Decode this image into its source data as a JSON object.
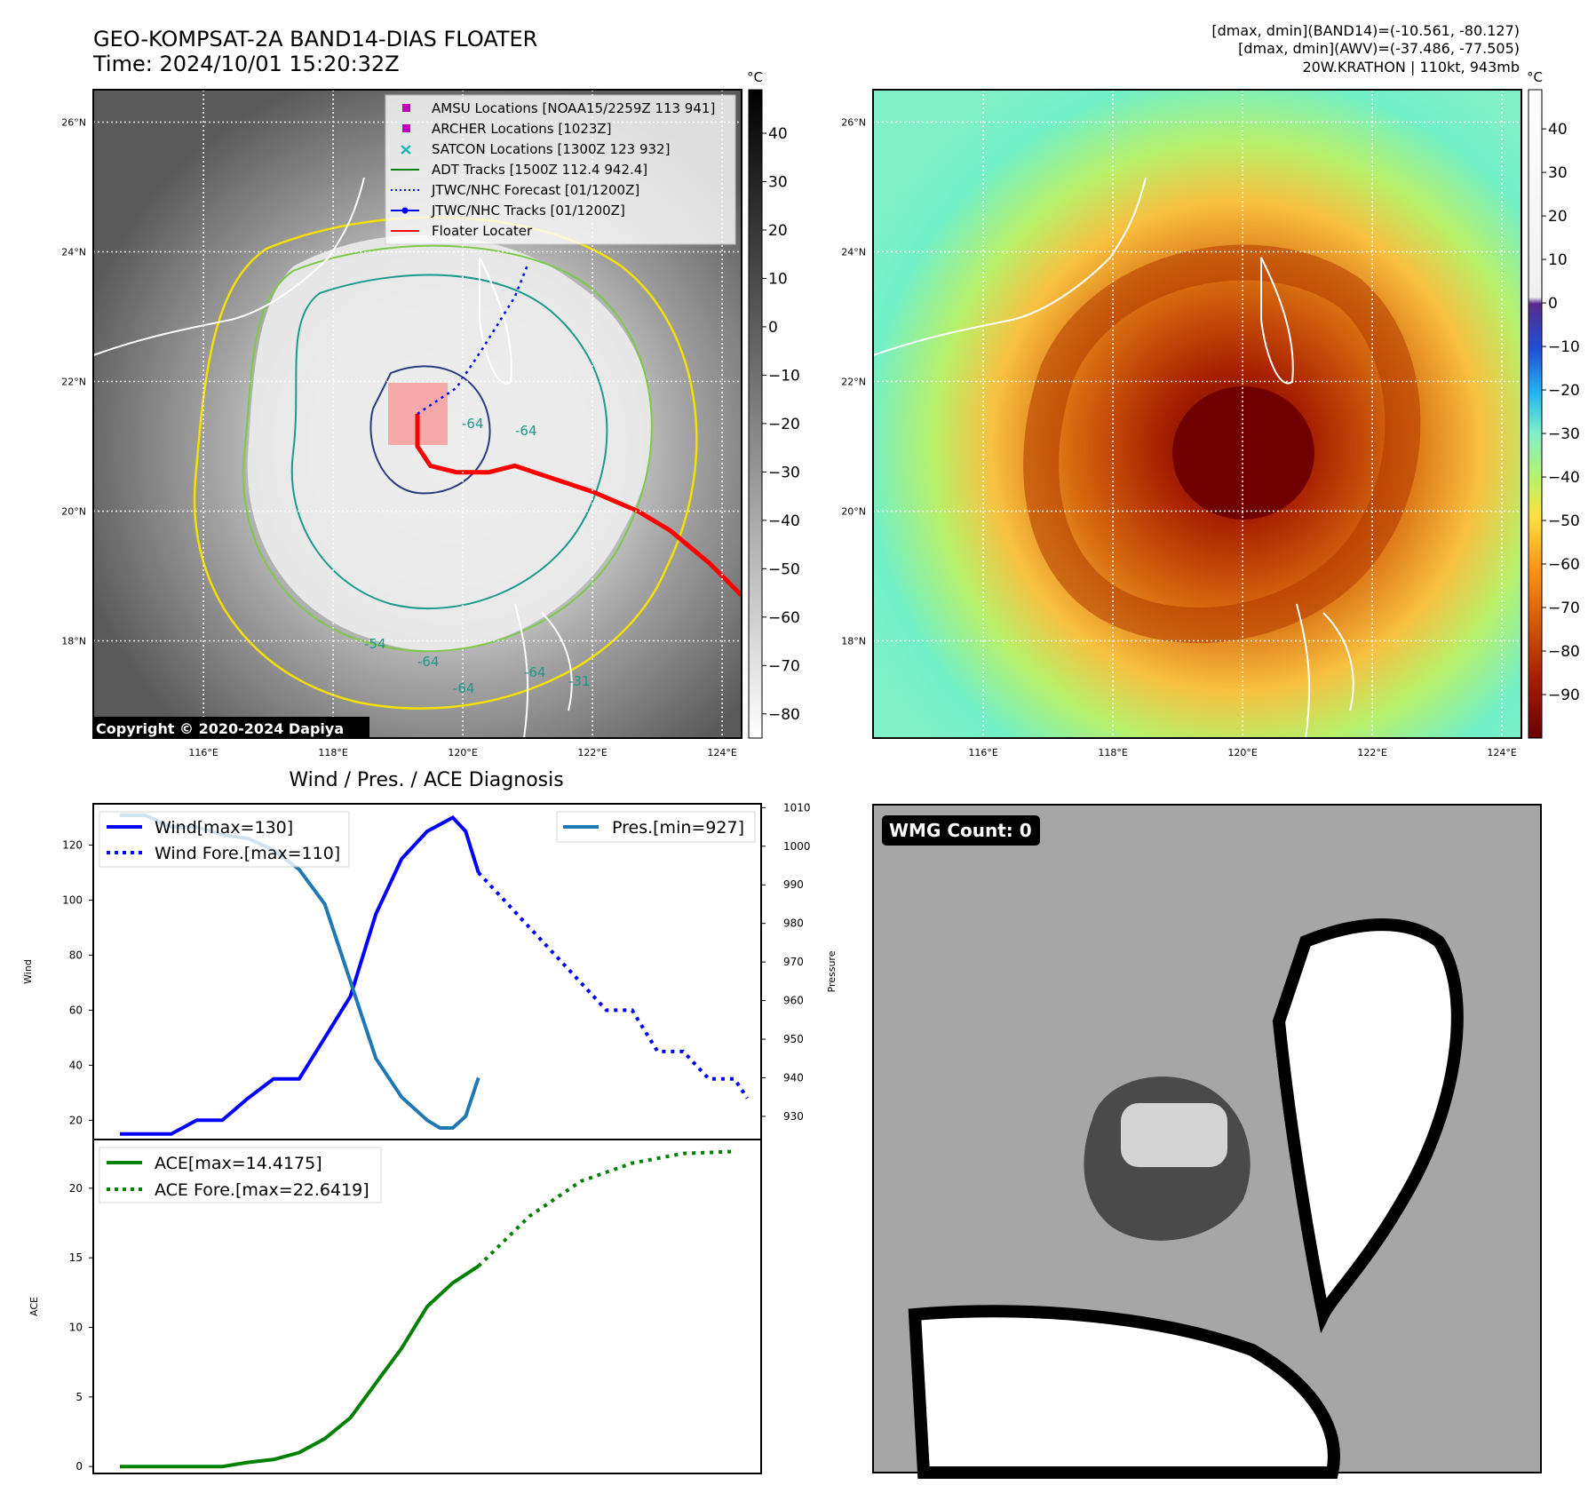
{
  "header": {
    "title_line1": "GEO-KOMPSAT-2A BAND14-DIAS FLOATER",
    "title_line2": "Time: 2024/10/01 15:20:32Z",
    "info_line1": "[dmax, dmin](BAND14)=(-10.561, -80.127)",
    "info_line2": "[dmax, dmin](AWV)=(-37.486, -77.505)",
    "info_line3": "20W.KRATHON | 110kt, 943mb"
  },
  "map": {
    "lat_labels": [
      "26°N",
      "24°N",
      "22°N",
      "20°N",
      "18°N"
    ],
    "lon_labels": [
      "116°E",
      "118°E",
      "120°E",
      "122°E",
      "124°E"
    ],
    "contour_labels": [
      "-64",
      "-64",
      "-64",
      "-54",
      "-64",
      "-64",
      "-31"
    ],
    "copyright": "Copyright © 2020-2024 Dapiya",
    "legend": [
      {
        "label": "AMSU Locations [NOAA15/2259Z 113 941]",
        "color": "#c000c0",
        "marker": "square"
      },
      {
        "label": "ARCHER Locations [1023Z]",
        "color": "#c000c0",
        "marker": "square"
      },
      {
        "label": "SATCON Locations [1300Z 123 932]",
        "color": "#1fb4b4",
        "marker": "x"
      },
      {
        "label": "ADT Tracks [1500Z 112.4 942.4]",
        "color": "#008000",
        "marker": "line"
      },
      {
        "label": "JTWC/NHC Forecast [01/1200Z]",
        "color": "#0000ff",
        "marker": "dotted"
      },
      {
        "label": "JTWC/NHC Tracks [01/1200Z]",
        "color": "#0000ff",
        "marker": "line-dot"
      },
      {
        "label": "Floater Locater",
        "color": "#ff0000",
        "marker": "line"
      }
    ],
    "track": {
      "best_track": [
        [
          124.3,
          18.7
        ],
        [
          123.8,
          19.2
        ],
        [
          123.2,
          19.7
        ],
        [
          122.7,
          20.0
        ],
        [
          122.0,
          20.3
        ],
        [
          121.4,
          20.5
        ],
        [
          120.8,
          20.7
        ],
        [
          120.4,
          20.6
        ],
        [
          119.9,
          20.6
        ],
        [
          119.5,
          20.7
        ],
        [
          119.3,
          21.0
        ],
        [
          119.3,
          21.5
        ]
      ],
      "forecast": [
        [
          119.9,
          21.9
        ],
        [
          120.3,
          22.5
        ],
        [
          120.8,
          23.3
        ],
        [
          121.0,
          23.8
        ]
      ]
    }
  },
  "colorbar_gray": {
    "unit": "°C",
    "ticks": [
      40,
      30,
      20,
      10,
      0,
      -10,
      -20,
      -30,
      -40,
      -50,
      -60,
      -70,
      -80
    ],
    "range": [
      -85,
      49
    ]
  },
  "colorbar_color": {
    "unit": "°C",
    "ticks": [
      40,
      30,
      20,
      10,
      0,
      -10,
      -20,
      -30,
      -40,
      -50,
      -60,
      -70,
      -80,
      -90
    ],
    "range": [
      -100,
      49
    ]
  },
  "wmg": {
    "label": "WMG Count: 0"
  },
  "chart_data": [
    {
      "type": "line",
      "title": "Wind / Pres. / ACE Diagnosis",
      "ylabel": "Wind",
      "y2label": "Pressure",
      "ylim": [
        13,
        135
      ],
      "y2lim": [
        924,
        1011
      ],
      "yticks": [
        20,
        40,
        60,
        80,
        100,
        120
      ],
      "y2ticks": [
        930,
        940,
        950,
        960,
        970,
        980,
        990,
        1000,
        1010
      ],
      "x_range": [
        0,
        24
      ],
      "series": [
        {
          "name": "Wind[max=130]",
          "color": "#0000ff",
          "style": "solid",
          "axis": "left",
          "x": [
            0,
            1,
            2,
            3,
            4,
            5,
            6,
            7,
            8,
            9,
            10,
            11,
            12,
            13,
            13.5,
            14
          ],
          "y": [
            15,
            15,
            15,
            20,
            20,
            28,
            35,
            35,
            50,
            65,
            95,
            115,
            125,
            130,
            125,
            110
          ]
        },
        {
          "name": "Wind Fore.[max=110]",
          "color": "#0000ff",
          "style": "dotted",
          "axis": "left",
          "x": [
            14,
            15,
            16,
            17,
            18,
            19,
            20,
            21,
            22,
            23,
            24,
            24.5
          ],
          "y": [
            110,
            100,
            90,
            80,
            70,
            60,
            60,
            45,
            45,
            35,
            35,
            28
          ]
        },
        {
          "name": "Pres.[min=927]",
          "color": "#1f77b4",
          "style": "solid",
          "axis": "right",
          "x": [
            0,
            1,
            2,
            3,
            4,
            5,
            6,
            7,
            8,
            9,
            10,
            11,
            12,
            12.5,
            13,
            13.5,
            14
          ],
          "y": [
            1008,
            1008,
            1005,
            1005,
            1003,
            1002,
            999,
            994,
            985,
            965,
            945,
            935,
            929,
            927,
            927,
            930,
            940
          ]
        }
      ]
    },
    {
      "type": "line",
      "ylabel": "ACE",
      "ylim": [
        -0.5,
        23.5
      ],
      "yticks": [
        0,
        5,
        10,
        15,
        20
      ],
      "x_range": [
        0,
        24
      ],
      "series": [
        {
          "name": "ACE[max=14.4175]",
          "color": "#008000",
          "style": "solid",
          "x": [
            0,
            2,
            4,
            5,
            6,
            7,
            8,
            9,
            10,
            11,
            12,
            13,
            14
          ],
          "y": [
            0,
            0,
            0,
            0.3,
            0.5,
            1.0,
            2.0,
            3.5,
            6.0,
            8.5,
            11.5,
            13.2,
            14.4
          ]
        },
        {
          "name": "ACE Fore.[max=22.6419]",
          "color": "#008000",
          "style": "dotted",
          "x": [
            14,
            16,
            18,
            20,
            22,
            24
          ],
          "y": [
            14.4,
            18.0,
            20.5,
            21.8,
            22.5,
            22.64
          ]
        }
      ]
    }
  ]
}
